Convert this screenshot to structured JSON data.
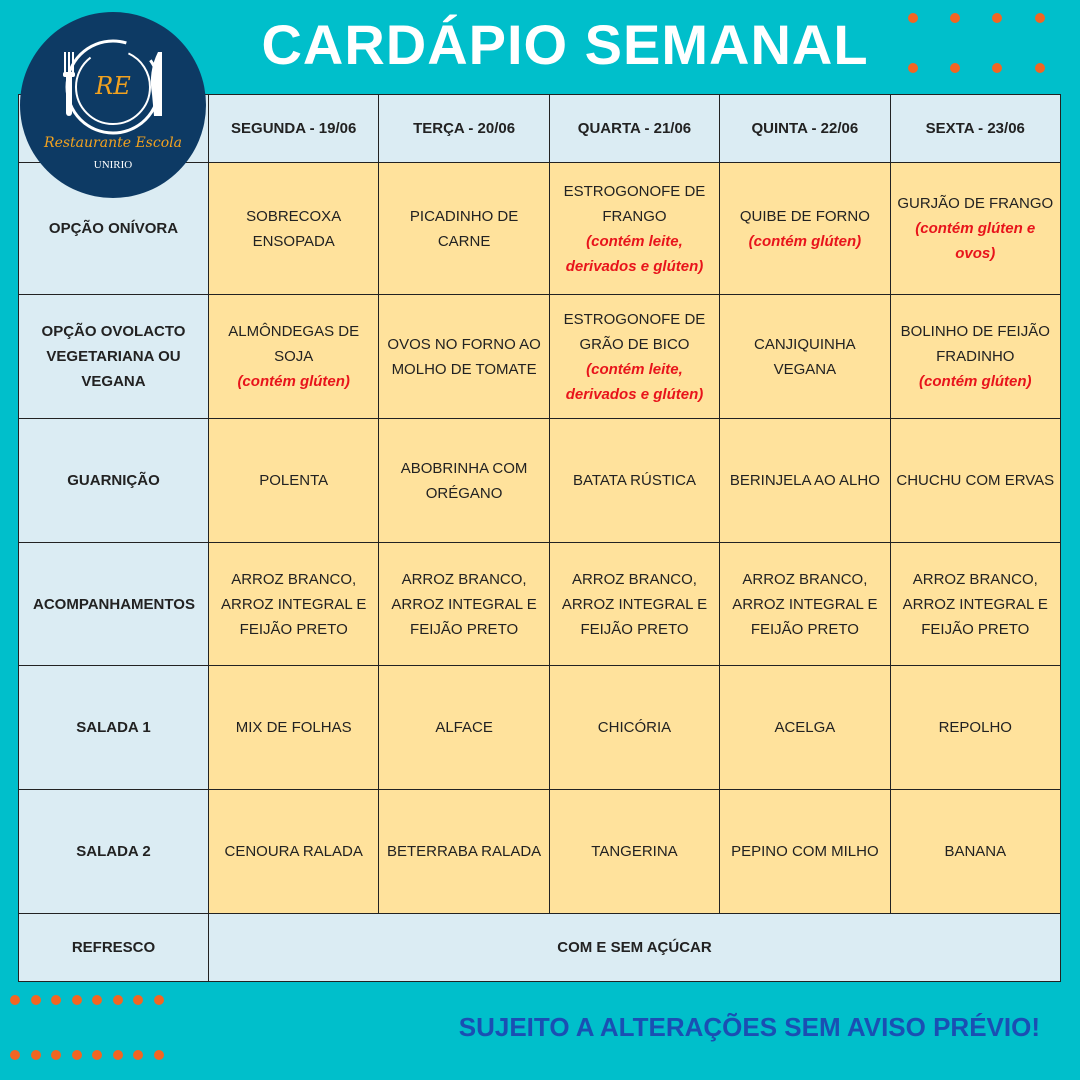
{
  "title": "CARDÁPIO SEMANAL",
  "logo": {
    "text": "Restaurante Escola",
    "subtext": "UNIRIO",
    "initials": "RE"
  },
  "colors": {
    "background": "#00bfcb",
    "header_cell": "#dbecf3",
    "body_cell": "#ffe29c",
    "note": "#e8141b",
    "dots": "#f26522",
    "footer": "#1a4fb3",
    "logo": "#0d3a64"
  },
  "columns": [
    "SEGUNDA - 19/06",
    "TERÇA - 20/06",
    "QUARTA - 21/06",
    "QUINTA - 22/06",
    "SEXTA - 23/06"
  ],
  "rows": [
    {
      "label": "OPÇÃO ONÍVORA",
      "cells": [
        {
          "text": "SOBRECOXA ENSOPADA",
          "note": ""
        },
        {
          "text": "PICADINHO DE CARNE",
          "note": ""
        },
        {
          "text": "ESTROGONOFE DE FRANGO",
          "note": "(contém leite, derivados e glúten)"
        },
        {
          "text": "QUIBE DE FORNO",
          "note": "(contém glúten)"
        },
        {
          "text": "GURJÃO DE FRANGO",
          "note": "(contém glúten e ovos)"
        }
      ]
    },
    {
      "label": "OPÇÃO OVOLACTO VEGETARIANA OU VEGANA",
      "cells": [
        {
          "text": "ALMÔNDEGAS DE SOJA",
          "note": "(contém glúten)"
        },
        {
          "text": "OVOS NO FORNO AO MOLHO DE TOMATE",
          "note": ""
        },
        {
          "text": "ESTROGONOFE DE GRÃO DE BICO",
          "note": "(contém leite, derivados e glúten)"
        },
        {
          "text": "CANJIQUINHA VEGANA",
          "note": ""
        },
        {
          "text": "BOLINHO DE FEIJÃO FRADINHO",
          "note": "(contém glúten)"
        }
      ]
    },
    {
      "label": "GUARNIÇÃO",
      "cells": [
        {
          "text": "POLENTA",
          "note": ""
        },
        {
          "text": "ABOBRINHA COM ORÉGANO",
          "note": ""
        },
        {
          "text": "BATATA RÚSTICA",
          "note": ""
        },
        {
          "text": "BERINJELA AO ALHO",
          "note": ""
        },
        {
          "text": "CHUCHU COM ERVAS",
          "note": ""
        }
      ]
    },
    {
      "label": "ACOMPANHAMENTOS",
      "cells": [
        {
          "text": "ARROZ BRANCO, ARROZ INTEGRAL E FEIJÃO PRETO",
          "note": ""
        },
        {
          "text": "ARROZ BRANCO, ARROZ INTEGRAL E FEIJÃO PRETO",
          "note": ""
        },
        {
          "text": "ARROZ BRANCO, ARROZ INTEGRAL E FEIJÃO PRETO",
          "note": ""
        },
        {
          "text": "ARROZ BRANCO, ARROZ INTEGRAL E FEIJÃO PRETO",
          "note": ""
        },
        {
          "text": "ARROZ BRANCO, ARROZ INTEGRAL E FEIJÃO PRETO",
          "note": ""
        }
      ]
    },
    {
      "label": "SALADA 1",
      "cells": [
        {
          "text": "MIX DE FOLHAS",
          "note": ""
        },
        {
          "text": "ALFACE",
          "note": ""
        },
        {
          "text": "CHICÓRIA",
          "note": ""
        },
        {
          "text": "ACELGA",
          "note": ""
        },
        {
          "text": "REPOLHO",
          "note": ""
        }
      ]
    },
    {
      "label": "SALADA 2",
      "cells": [
        {
          "text": "CENOURA RALADA",
          "note": ""
        },
        {
          "text": "BETERRABA RALADA",
          "note": ""
        },
        {
          "text": "TANGERINA",
          "note": ""
        },
        {
          "text": "PEPINO COM MILHO",
          "note": ""
        },
        {
          "text": "BANANA",
          "note": ""
        }
      ]
    }
  ],
  "refresco": {
    "label": "REFRESCO",
    "value": "COM E SEM AÇÚCAR"
  },
  "footer": "SUJEITO A ALTERAÇÕES SEM AVISO PRÉVIO!"
}
